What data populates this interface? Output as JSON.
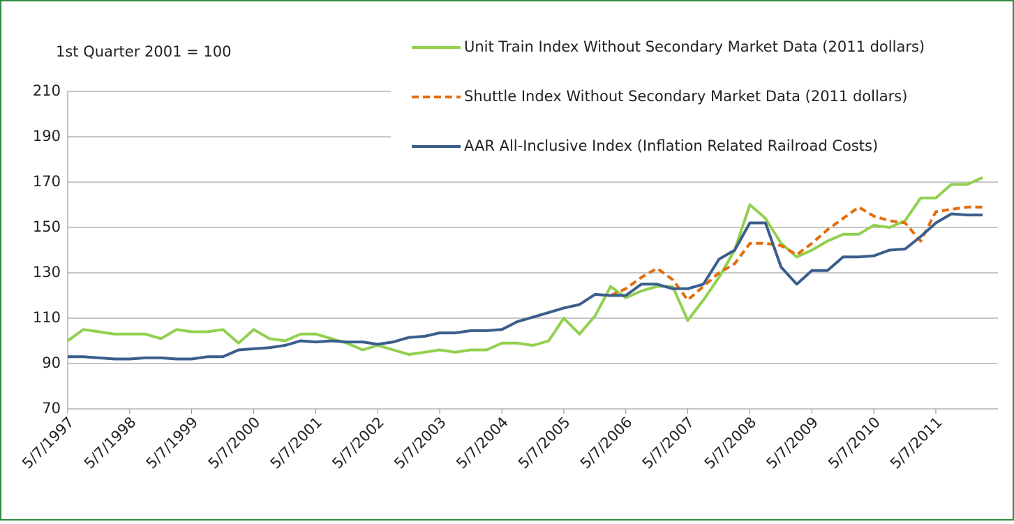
{
  "chart_data": {
    "type": "line",
    "annotation": "1st Quarter 2001 = 100",
    "x": [
      "5/7/1997",
      "8/7/1997",
      "11/7/1997",
      "2/7/1998",
      "5/7/1998",
      "8/7/1998",
      "11/7/1998",
      "2/7/1999",
      "5/7/1999",
      "8/7/1999",
      "11/7/1999",
      "2/7/2000",
      "5/7/2000",
      "8/7/2000",
      "11/7/2000",
      "2/7/2001",
      "5/7/2001",
      "8/7/2001",
      "11/7/2001",
      "2/7/2002",
      "5/7/2002",
      "8/7/2002",
      "11/7/2002",
      "2/7/2003",
      "5/7/2003",
      "8/7/2003",
      "11/7/2003",
      "2/7/2004",
      "5/7/2004",
      "8/7/2004",
      "11/7/2004",
      "2/7/2005",
      "5/7/2005",
      "8/7/2005",
      "11/7/2005",
      "2/7/2006",
      "5/7/2006",
      "8/7/2006",
      "11/7/2006",
      "2/7/2007",
      "5/7/2007",
      "8/7/2007",
      "11/7/2007",
      "2/7/2008",
      "5/7/2008",
      "8/7/2008",
      "11/7/2008",
      "2/7/2009",
      "5/7/2009",
      "8/7/2009",
      "11/7/2009",
      "2/7/2010",
      "5/7/2010",
      "8/7/2010",
      "11/7/2010",
      "2/7/2011",
      "5/7/2011",
      "8/7/2011",
      "11/7/2011",
      "2/7/2012"
    ],
    "series": [
      {
        "name": "Unit Train Index Without Secondary Market Data (2011 dollars)",
        "color": "#92d050",
        "dash": false,
        "values": [
          100,
          105,
          104,
          103,
          103,
          103,
          101,
          105,
          104,
          104,
          105,
          99,
          105,
          101,
          100,
          103,
          103,
          101,
          99,
          96,
          98,
          96,
          94,
          95,
          96,
          95,
          96,
          96,
          99,
          99,
          98,
          100,
          110,
          103,
          111,
          124,
          119,
          122,
          124,
          124,
          109,
          118,
          128,
          140,
          160,
          154,
          143,
          137,
          140,
          144,
          147,
          147,
          151,
          150,
          153,
          163,
          163,
          169,
          169,
          172
        ]
      },
      {
        "name": "Shuttle Index Without Secondary Market Data (2011 dollars)",
        "color": "#e46c0a",
        "dash": true,
        "values": [
          null,
          null,
          null,
          null,
          null,
          null,
          null,
          null,
          null,
          null,
          null,
          null,
          null,
          null,
          null,
          null,
          null,
          null,
          null,
          null,
          null,
          null,
          null,
          null,
          null,
          null,
          null,
          null,
          null,
          null,
          null,
          null,
          null,
          null,
          null,
          120,
          123,
          128,
          132,
          127,
          118,
          124,
          130,
          134,
          143,
          143,
          142,
          138,
          143,
          149,
          154,
          159,
          155,
          153,
          152,
          144,
          157,
          158,
          159,
          159
        ]
      },
      {
        "name": "AAR All-Inclusive Index (Inflation Related Railroad Costs)",
        "color": "#3b5e8c",
        "dash": false,
        "values": [
          93,
          93,
          92.5,
          92,
          92,
          92.5,
          92.5,
          92,
          92,
          93,
          93,
          96,
          96.5,
          97,
          98,
          100,
          99.5,
          100,
          99.5,
          99.5,
          98.5,
          99.5,
          101.5,
          102,
          103.5,
          103.5,
          104.5,
          104.5,
          105,
          108.5,
          110.5,
          112.5,
          114.5,
          116,
          120.5,
          120,
          120,
          125,
          125,
          123,
          123,
          125,
          136,
          140,
          152,
          152,
          132.5,
          125,
          131,
          131,
          137,
          137,
          137.5,
          140,
          140.5,
          146,
          152,
          156,
          155.5,
          155.5
        ]
      }
    ],
    "xlim": [
      "5/7/1997",
      "5/7/2012"
    ],
    "xticks": [
      "5/7/1997",
      "5/7/1998",
      "5/7/1999",
      "5/7/2000",
      "5/7/2001",
      "5/7/2002",
      "5/7/2003",
      "5/7/2004",
      "5/7/2005",
      "5/7/2006",
      "5/7/2007",
      "5/7/2008",
      "5/7/2009",
      "5/7/2010",
      "5/7/2011"
    ],
    "ylim": [
      70,
      210
    ],
    "yticks": [
      70,
      90,
      110,
      130,
      150,
      170,
      190,
      210
    ],
    "grid": true,
    "legend": "top-right"
  }
}
